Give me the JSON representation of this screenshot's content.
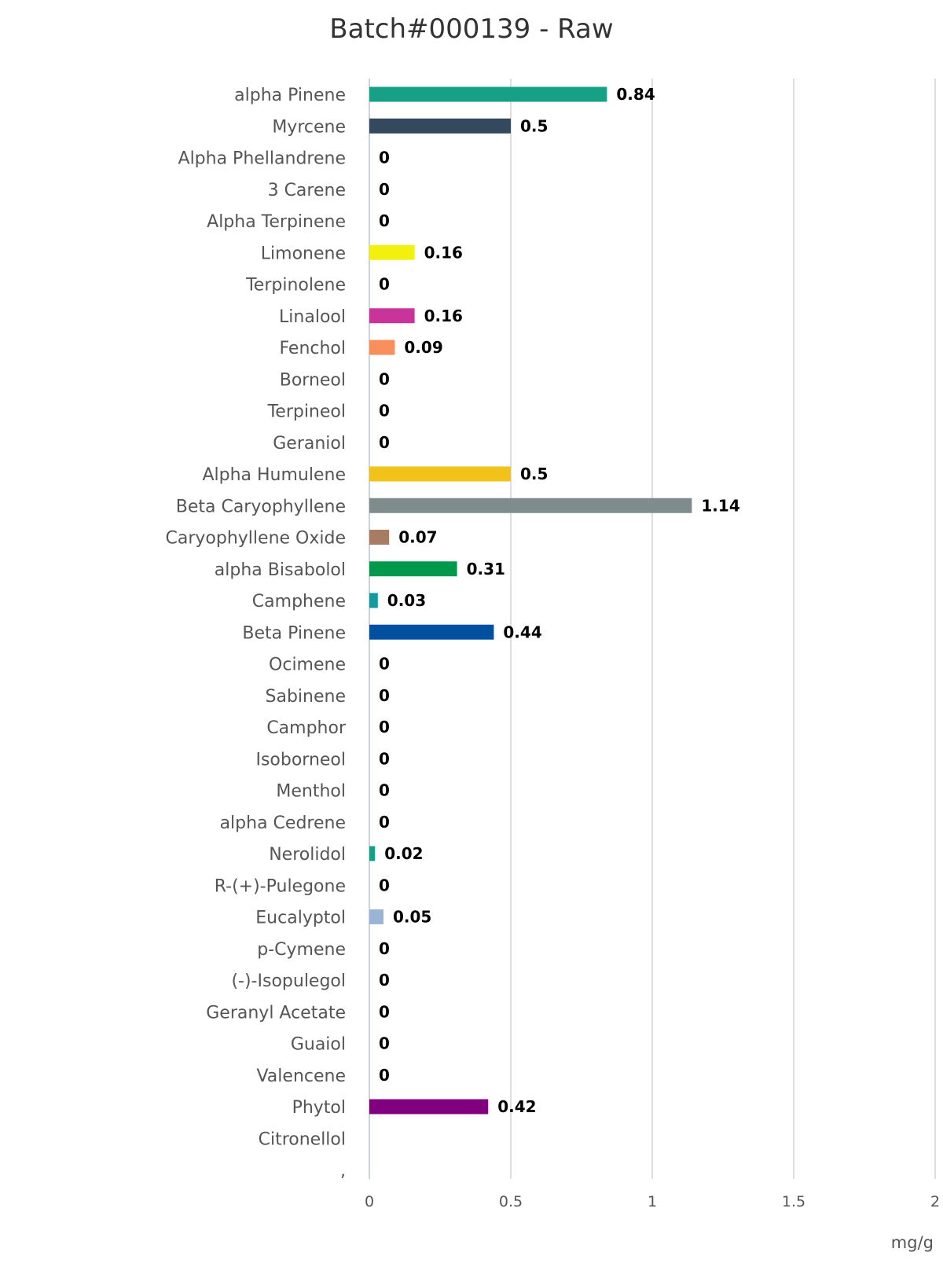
{
  "chart_data": {
    "type": "bar",
    "orientation": "horizontal",
    "title": "Batch#000139 - Raw",
    "xlabel": "mg/g",
    "ylabel": "",
    "xlim": [
      0,
      2
    ],
    "x_ticks": [
      "0",
      "0.5",
      "1",
      "1.5",
      "2"
    ],
    "grid": true,
    "categories": [
      "alpha Pinene",
      "Myrcene",
      "Alpha Phellandrene",
      "3 Carene",
      "Alpha Terpinene",
      "Limonene",
      "Terpinolene",
      "Linalool",
      "Fenchol",
      "Borneol",
      "Terpineol",
      "Geraniol",
      "Alpha Humulene",
      "Beta Caryophyllene",
      "Caryophyllene Oxide",
      "alpha Bisabolol",
      "Camphene",
      "Beta Pinene",
      "Ocimene",
      "Sabinene",
      "Camphor",
      "Isoborneol",
      "Menthol",
      "alpha Cedrene",
      "Nerolidol",
      "R-(+)-Pulegone",
      "Eucalyptol",
      "p-Cymene",
      "(-)-Isopulegol",
      "Geranyl Acetate",
      "Guaiol",
      "Valencene",
      "Phytol",
      "Citronellol",
      ","
    ],
    "values": [
      0.84,
      0.5,
      0,
      0,
      0,
      0.16,
      0,
      0.16,
      0.09,
      0,
      0,
      0,
      0.5,
      1.14,
      0.07,
      0.31,
      0.03,
      0.44,
      0,
      0,
      0,
      0,
      0,
      0,
      0.02,
      0,
      0.05,
      0,
      0,
      0,
      0,
      0,
      0.42,
      null,
      null
    ],
    "value_labels": [
      "0.84",
      "0.5",
      "0",
      "0",
      "0",
      "0.16",
      "0",
      "0.16",
      "0.09",
      "0",
      "0",
      "0",
      "0.5",
      "1.14",
      "0.07",
      "0.31",
      "0.03",
      "0.44",
      "0",
      "0",
      "0",
      "0",
      "0",
      "0",
      "0.02",
      "0",
      "0.05",
      "0",
      "0",
      "0",
      "0",
      "0",
      "0.42",
      "",
      ""
    ],
    "colors": [
      "#16a085",
      "#34495e",
      "#16a085",
      "#16a085",
      "#16a085",
      "#f1f00e",
      "#16a085",
      "#c8349a",
      "#f78e5b",
      "#16a085",
      "#16a085",
      "#16a085",
      "#f1c21a",
      "#7f8c8d",
      "#a67c62",
      "#00994c",
      "#16999e",
      "#0050a0",
      "#16a085",
      "#16a085",
      "#16a085",
      "#16a085",
      "#16a085",
      "#16a085",
      "#16a085",
      "#16a085",
      "#9ab4d6",
      "#16a085",
      "#16a085",
      "#16a085",
      "#16a085",
      "#16a085",
      "#800080",
      "#16a085",
      "#16a085"
    ],
    "gridline_color": "#d0d4d8",
    "text_color": "#555555"
  }
}
